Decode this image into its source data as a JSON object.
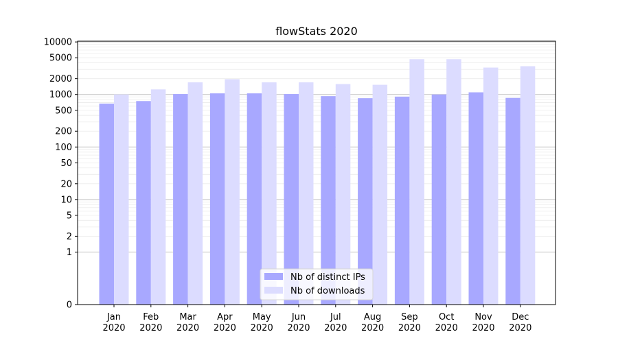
{
  "chart_data": {
    "type": "bar",
    "title": "flowStats 2020",
    "xlabel": "",
    "ylabel": "",
    "y_scale": "symlog",
    "yticks": [
      0,
      1,
      2,
      5,
      10,
      20,
      50,
      100,
      200,
      500,
      1000,
      2000,
      5000,
      10000
    ],
    "yticks_labels": [
      "0",
      "1",
      "2",
      "5",
      "10",
      "20",
      "50",
      "100",
      "200",
      "500",
      "1000",
      "2000",
      "5000",
      "10000"
    ],
    "categories": [
      "Jan\n2020",
      "Feb\n2020",
      "Mar\n2020",
      "Apr\n2020",
      "May\n2020",
      "Jun\n2020",
      "Jul\n2020",
      "Aug\n2020",
      "Sep\n2020",
      "Oct\n2020",
      "Nov\n2020",
      "Dec\n2020"
    ],
    "category_lines": [
      [
        "Jan",
        "2020"
      ],
      [
        "Feb",
        "2020"
      ],
      [
        "Mar",
        "2020"
      ],
      [
        "Apr",
        "2020"
      ],
      [
        "May",
        "2020"
      ],
      [
        "Jun",
        "2020"
      ],
      [
        "Jul",
        "2020"
      ],
      [
        "Aug",
        "2020"
      ],
      [
        "Sep",
        "2020"
      ],
      [
        "Oct",
        "2020"
      ],
      [
        "Nov",
        "2020"
      ],
      [
        "Dec",
        "2020"
      ]
    ],
    "series": [
      {
        "name": "Nb of distinct IPs",
        "color": "#a8a8ff",
        "values": [
          670,
          750,
          1020,
          1050,
          1050,
          1020,
          930,
          850,
          910,
          1000,
          1100,
          860
        ]
      },
      {
        "name": "Nb of downloads",
        "color": "#dcdcff",
        "values": [
          1000,
          1250,
          1700,
          1950,
          1700,
          1700,
          1580,
          1530,
          4700,
          4700,
          3250,
          3450
        ]
      }
    ],
    "legend_position": "bottom-center",
    "grid": true
  }
}
